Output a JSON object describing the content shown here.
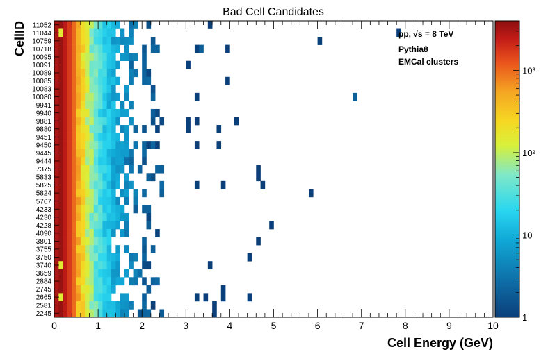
{
  "chart_data": {
    "type": "heatmap",
    "title": "Bad Cell Candidates",
    "xlabel": "Cell Energy (GeV)",
    "ylabel": "CellID",
    "xlim": [
      0,
      10
    ],
    "x_ticks": [
      "0",
      "1",
      "2",
      "3",
      "4",
      "5",
      "6",
      "7",
      "8",
      "9",
      "10"
    ],
    "z_scale": "log",
    "zlim": [
      1,
      4000
    ],
    "z_ticks": [
      {
        "value": 1,
        "label": "1"
      },
      {
        "value": 10,
        "label": "10"
      },
      {
        "value": 100,
        "label": "10²"
      },
      {
        "value": 1000,
        "label": "10³"
      }
    ],
    "bin_width_gev": 0.1,
    "annotations": [
      "pp, √s = 8 TeV",
      "Pythia8",
      "EMCal clusters"
    ],
    "cell_ids": [
      "11052",
      "11044",
      "10759",
      "10718",
      "10095",
      "10091",
      "10089",
      "10085",
      "10083",
      "10080",
      "9941",
      "9940",
      "9881",
      "9880",
      "9451",
      "9450",
      "9445",
      "9444",
      "7375",
      "5833",
      "5825",
      "5824",
      "5767",
      "4233",
      "4230",
      "4228",
      "4090",
      "3801",
      "3755",
      "3750",
      "3740",
      "3659",
      "2884",
      "2745",
      "2665",
      "2581",
      "2245"
    ],
    "profile_counts": [
      3000,
      3600,
      2600,
      1700,
      1000,
      480,
      240,
      120,
      70,
      45,
      30,
      20,
      14,
      10,
      8,
      6,
      5,
      4,
      3,
      2
    ],
    "high_rows": {
      "11044": 150,
      "3740": 150,
      "2665": 150
    },
    "outliers": [
      {
        "cell": "11052",
        "e": 3.55,
        "count": 1
      },
      {
        "cell": "11044",
        "e": 7.85,
        "count": 1
      },
      {
        "cell": "10759",
        "e": 6.05,
        "count": 1
      },
      {
        "cell": "10718",
        "e": 3.25,
        "count": 1
      },
      {
        "cell": "10718",
        "e": 3.35,
        "count": 2
      },
      {
        "cell": "10718",
        "e": 3.95,
        "count": 1
      },
      {
        "cell": "10091",
        "e": 3.05,
        "count": 1
      },
      {
        "cell": "10085",
        "e": 3.95,
        "count": 1
      },
      {
        "cell": "10080",
        "e": 3.25,
        "count": 1
      },
      {
        "cell": "10080",
        "e": 6.85,
        "count": 2
      },
      {
        "cell": "9881",
        "e": 3.05,
        "count": 1
      },
      {
        "cell": "9881",
        "e": 3.25,
        "count": 1
      },
      {
        "cell": "9881",
        "e": 4.15,
        "count": 1
      },
      {
        "cell": "9880",
        "e": 3.05,
        "count": 1
      },
      {
        "cell": "9880",
        "e": 3.75,
        "count": 1
      },
      {
        "cell": "9450",
        "e": 3.25,
        "count": 1
      },
      {
        "cell": "9450",
        "e": 3.75,
        "count": 1
      },
      {
        "cell": "7375",
        "e": 4.65,
        "count": 1
      },
      {
        "cell": "5833",
        "e": 4.65,
        "count": 1
      },
      {
        "cell": "5825",
        "e": 3.25,
        "count": 1
      },
      {
        "cell": "5825",
        "e": 3.85,
        "count": 1
      },
      {
        "cell": "5825",
        "e": 4.75,
        "count": 1
      },
      {
        "cell": "5824",
        "e": 5.85,
        "count": 1
      },
      {
        "cell": "4228",
        "e": 4.95,
        "count": 1
      },
      {
        "cell": "3801",
        "e": 4.65,
        "count": 1
      },
      {
        "cell": "3750",
        "e": 4.45,
        "count": 1
      },
      {
        "cell": "3740",
        "e": 3.55,
        "count": 1
      },
      {
        "cell": "2745",
        "e": 3.85,
        "count": 1
      },
      {
        "cell": "2665",
        "e": 3.25,
        "count": 1
      },
      {
        "cell": "2665",
        "e": 3.45,
        "count": 1
      },
      {
        "cell": "2665",
        "e": 3.85,
        "count": 1
      },
      {
        "cell": "2665",
        "e": 4.45,
        "count": 1
      },
      {
        "cell": "2581",
        "e": 3.65,
        "count": 1
      },
      {
        "cell": "2245",
        "e": 3.65,
        "count": 1
      }
    ]
  }
}
